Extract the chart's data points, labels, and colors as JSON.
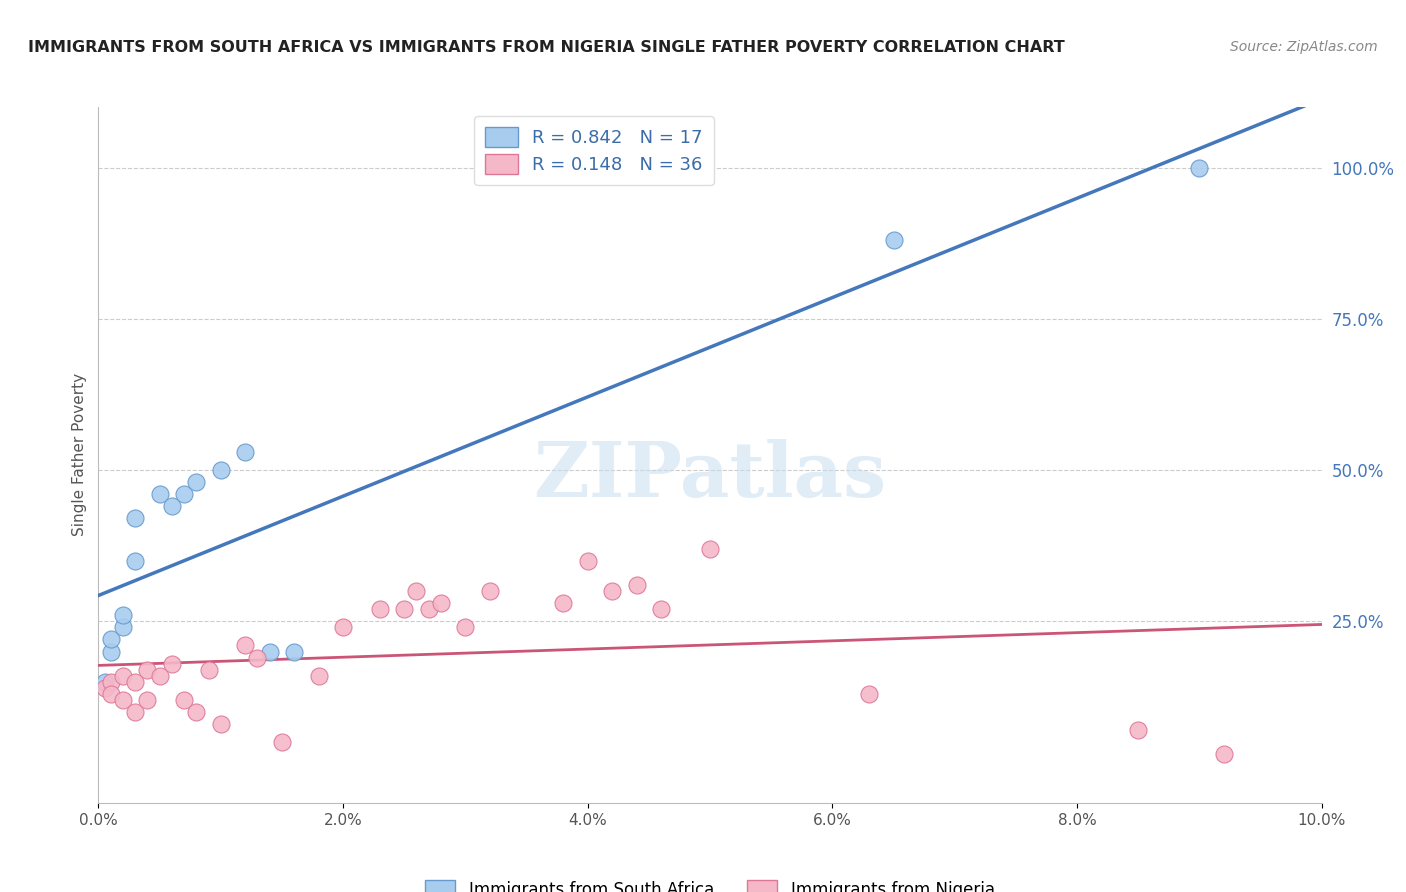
{
  "title": "IMMIGRANTS FROM SOUTH AFRICA VS IMMIGRANTS FROM NIGERIA SINGLE FATHER POVERTY CORRELATION CHART",
  "source": "Source: ZipAtlas.com",
  "ylabel": "Single Father Poverty",
  "right_ytick_labels": [
    "100.0%",
    "75.0%",
    "50.0%",
    "25.0%"
  ],
  "right_ytick_values": [
    1.0,
    0.75,
    0.5,
    0.25
  ],
  "xlim": [
    0.0,
    0.1
  ],
  "ylim": [
    -0.05,
    1.1
  ],
  "blue_R": 0.842,
  "blue_N": 17,
  "pink_R": 0.148,
  "pink_N": 36,
  "blue_scatter_color": "#A8CCEE",
  "blue_scatter_edge": "#6699CC",
  "pink_scatter_color": "#F5B8C8",
  "pink_scatter_edge": "#DD7799",
  "blue_line_color": "#4477BB",
  "pink_line_color": "#CC5577",
  "legend_label_blue": "Immigrants from South Africa",
  "legend_label_pink": "Immigrants from Nigeria",
  "watermark": "ZIPatlas",
  "blue_x": [
    0.0005,
    0.001,
    0.001,
    0.002,
    0.002,
    0.003,
    0.003,
    0.005,
    0.006,
    0.007,
    0.008,
    0.01,
    0.012,
    0.014,
    0.016,
    0.065,
    0.09
  ],
  "blue_y": [
    0.15,
    0.2,
    0.22,
    0.24,
    0.26,
    0.35,
    0.42,
    0.46,
    0.44,
    0.46,
    0.48,
    0.5,
    0.53,
    0.2,
    0.2,
    0.88,
    1.0
  ],
  "pink_x": [
    0.0005,
    0.001,
    0.001,
    0.002,
    0.002,
    0.003,
    0.003,
    0.004,
    0.004,
    0.005,
    0.006,
    0.007,
    0.008,
    0.009,
    0.01,
    0.012,
    0.013,
    0.015,
    0.018,
    0.02,
    0.023,
    0.025,
    0.026,
    0.027,
    0.028,
    0.03,
    0.032,
    0.038,
    0.04,
    0.042,
    0.044,
    0.046,
    0.05,
    0.063,
    0.085,
    0.092
  ],
  "pink_y": [
    0.14,
    0.15,
    0.13,
    0.16,
    0.12,
    0.15,
    0.1,
    0.17,
    0.12,
    0.16,
    0.18,
    0.12,
    0.1,
    0.17,
    0.08,
    0.21,
    0.19,
    0.05,
    0.16,
    0.24,
    0.27,
    0.27,
    0.3,
    0.27,
    0.28,
    0.24,
    0.3,
    0.28,
    0.35,
    0.3,
    0.31,
    0.27,
    0.37,
    0.13,
    0.07,
    0.03
  ]
}
